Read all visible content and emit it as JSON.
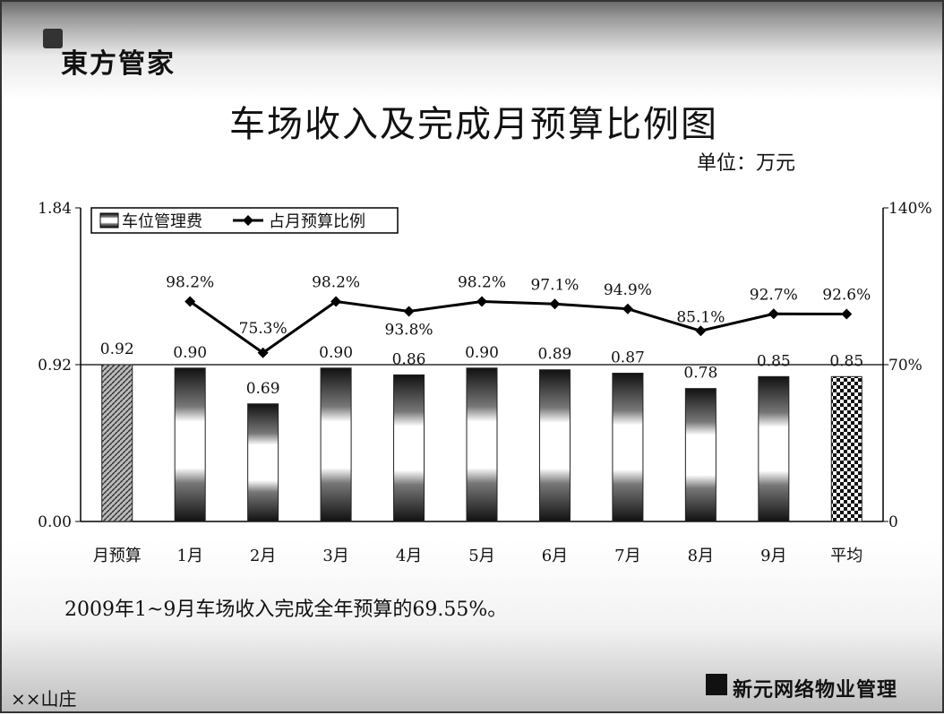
{
  "brand": "東方管家",
  "title": "车场收入及完成月预算比例图",
  "unit": "单位：万元",
  "summary": "2009年1~9月车场收入完成全年预算的69.55%。",
  "footer_left": "××山庄",
  "footer_right": "新元网络物业管理",
  "chart_data": {
    "type": "bar",
    "categories": [
      "月预算",
      "1月",
      "2月",
      "3月",
      "4月",
      "5月",
      "6月",
      "7月",
      "8月",
      "9月",
      "平均"
    ],
    "series": [
      {
        "name": "车位管理费",
        "type": "bar",
        "axis": "left",
        "values": [
          0.92,
          0.9,
          0.69,
          0.9,
          0.86,
          0.9,
          0.89,
          0.87,
          0.78,
          0.85,
          0.85
        ],
        "labels": [
          "0.92",
          "0.90",
          "0.69",
          "0.90",
          "0.86",
          "0.90",
          "0.89",
          "0.87",
          "0.78",
          "0.85",
          "0.85"
        ]
      },
      {
        "name": "占月预算比例",
        "type": "line",
        "axis": "right",
        "values": [
          null,
          98.2,
          75.3,
          98.2,
          93.8,
          98.2,
          97.1,
          94.9,
          85.1,
          92.7,
          92.6
        ],
        "labels": [
          "",
          "98.2%",
          "75.3%",
          "98.2%",
          "93.8%",
          "98.2%",
          "97.1%",
          "94.9%",
          "85.1%",
          "92.7%",
          "92.6%"
        ]
      }
    ],
    "y_left": {
      "range": [
        0,
        1.84
      ],
      "ticks": [
        0,
        0.92,
        1.84
      ],
      "tick_labels": [
        "0.00",
        "0.92",
        "1.84"
      ]
    },
    "y_right": {
      "range": [
        0,
        140
      ],
      "ticks": [
        0,
        70,
        140
      ],
      "tick_labels": [
        "0",
        "70%",
        "140%"
      ]
    },
    "legend_position": "top-left",
    "colors": {
      "bar": "#222222",
      "line": "#000000",
      "axis": "#000000"
    }
  }
}
